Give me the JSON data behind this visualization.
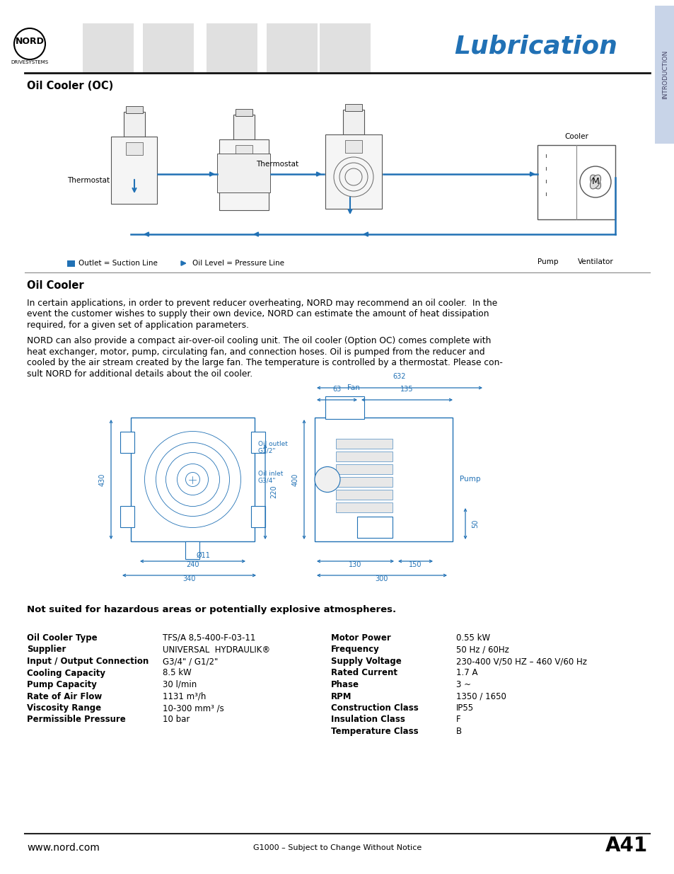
{
  "title": "Lubrication",
  "section_tab": "INTRODUCTION",
  "page_header_section": "Oil Cooler (OC)",
  "oil_cooler_heading": "Oil Cooler",
  "body_text_1a": "In certain applications, in order to prevent reducer overheating, NORD may recommend an oil cooler.  In the",
  "body_text_1b": "event the customer wishes to supply their own device, NORD can estimate the amount of heat dissipation",
  "body_text_1c": "required, for a given set of application parameters.",
  "body_text_2a": "NORD can also provide a compact air-over-oil cooling unit. The oil cooler (Option OC) comes complete with",
  "body_text_2b": "heat exchanger, motor, pump, circulating fan, and connection hoses. Oil is pumped from the reducer and",
  "body_text_2c": "cooled by the air stream created by the large fan. The temperature is controlled by a thermostat. Please con-",
  "body_text_2d": "sult NORD for additional details about the oil cooler.",
  "warning_text": "Not suited for hazardous areas or potentially explosive atmospheres.",
  "specs_left_labels": [
    "Oil Cooler Type",
    "Supplier",
    "Input / Output Connection",
    "Cooling Capacity",
    "Pump Capacity",
    "Rate of Air Flow",
    "Viscosity Range",
    "Permissible Pressure"
  ],
  "specs_left_values": [
    "TFS/A 8,5-400-F-03-11",
    "UNIVERSAL  HYDRAULIK®",
    "G3/4\" / G1/2\"",
    "8.5 kW",
    "30 l/min",
    "1131 m³/h",
    "10-300 mm³ /s",
    "10 bar"
  ],
  "specs_right_labels": [
    "Motor Power",
    "Frequency",
    "Supply Voltage",
    "Rated Current",
    "Phase",
    "RPM",
    "Construction Class",
    "Insulation Class",
    "Temperature Class"
  ],
  "specs_right_values": [
    "0.55 kW",
    "50 Hz / 60Hz",
    "230-400 V/50 HZ – 460 V/60 Hz",
    "1.7 A",
    "3 ~",
    "1350 / 1650",
    "IP55",
    "F",
    "B"
  ],
  "footer_left": "www.nord.com",
  "footer_center": "G1000 – Subject to Change Without Notice",
  "footer_right": "A41",
  "bg_color": "#ffffff",
  "text_color": "#000000",
  "blue_color": "#2171b5",
  "title_color": "#2171b5",
  "tab_bg_color": "#c8d4e8",
  "line_color": "#000000"
}
